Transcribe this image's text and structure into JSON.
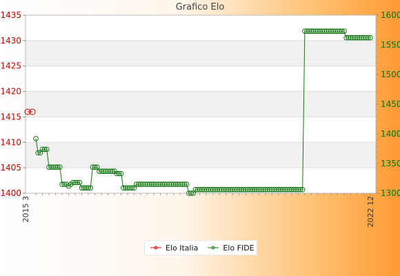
{
  "chart_data": {
    "type": "line",
    "title": "Grafico Elo",
    "y_left": {
      "min": 1400,
      "max": 1435,
      "ticks": [
        "1400",
        "1405",
        "1410",
        "1415",
        "1420",
        "1425",
        "1430",
        "1435"
      ],
      "color": "#cc0000"
    },
    "y_right": {
      "min": 1300,
      "max": 1600,
      "ticks": [
        "1300",
        "1350",
        "1400",
        "1450",
        "1500",
        "1550",
        "1600"
      ],
      "color": "#007700"
    },
    "x_tick_labels": [
      "2015 3",
      "2022 12"
    ],
    "grid": true,
    "legend_position": "bottom-center",
    "series": [
      {
        "name": "Elo Italia",
        "color": "#cc0000",
        "axis": "left",
        "values": [
          1416,
          1416
        ]
      },
      {
        "name": "Elo FIDE",
        "color": "#117711",
        "axis": "right",
        "values": [
          1392,
          1368,
          1368,
          1374,
          1374,
          1374,
          1344,
          1344,
          1344,
          1344,
          1344,
          1344,
          1315,
          1315,
          1315,
          1312,
          1315,
          1318,
          1318,
          1318,
          1318,
          1309,
          1309,
          1309,
          1309,
          1309,
          1344,
          1344,
          1344,
          1337,
          1337,
          1337,
          1337,
          1337,
          1337,
          1337,
          1337,
          1333,
          1333,
          1333,
          1309,
          1309,
          1309,
          1309,
          1309,
          1309,
          1315,
          1315,
          1315,
          1315,
          1315,
          1315,
          1315,
          1315,
          1315,
          1315,
          1315,
          1315,
          1315,
          1315,
          1315,
          1315,
          1315,
          1315,
          1315,
          1315,
          1315,
          1315,
          1315,
          1315,
          1300,
          1300,
          1300,
          1306,
          1306,
          1306,
          1306,
          1306,
          1306,
          1306,
          1306,
          1306,
          1306,
          1306,
          1306,
          1306,
          1306,
          1306,
          1306,
          1306,
          1306,
          1306,
          1306,
          1306,
          1306,
          1306,
          1306,
          1306,
          1306,
          1306,
          1306,
          1306,
          1306,
          1306,
          1306,
          1306,
          1306,
          1306,
          1306,
          1306,
          1306,
          1306,
          1306,
          1306,
          1306,
          1306,
          1306,
          1306,
          1306,
          1306,
          1306,
          1306,
          1306,
          1573,
          1573,
          1573,
          1573,
          1573,
          1573,
          1573,
          1573,
          1573,
          1573,
          1573,
          1573,
          1573,
          1573,
          1573,
          1573,
          1573,
          1573,
          1573,
          1562,
          1562,
          1562,
          1562,
          1562,
          1562,
          1562,
          1562,
          1562,
          1562,
          1562,
          1562
        ]
      }
    ]
  }
}
